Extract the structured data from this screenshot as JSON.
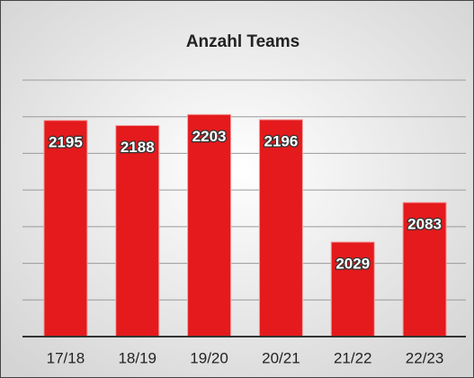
{
  "chart_data": {
    "type": "bar",
    "title": "Anzahl Teams",
    "categories": [
      "17/18",
      "18/19",
      "19/20",
      "20/21",
      "21/22",
      "22/23"
    ],
    "values": [
      2195,
      2188,
      2203,
      2196,
      2029,
      2083
    ],
    "color": "#e41a1c",
    "ylim": [
      1900,
      2250
    ],
    "yticks": [
      1900,
      1950,
      2000,
      2050,
      2100,
      2150,
      2200,
      2250
    ],
    "grid": true
  }
}
